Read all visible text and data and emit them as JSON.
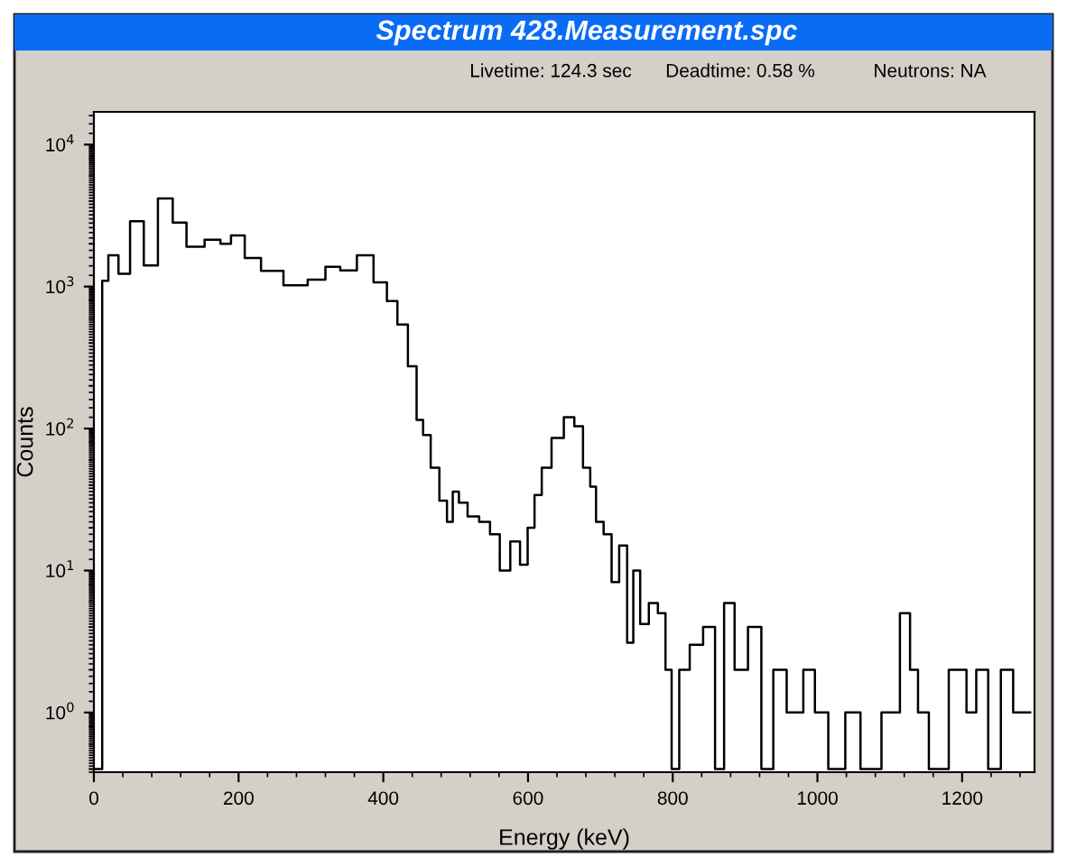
{
  "chart_data": {
    "type": "step",
    "title": "Spectrum 428.Measurement.spc",
    "annotations": [
      "Livetime: 124.3 sec",
      "Deadtime: 0.58 %",
      "Neutrons: NA"
    ],
    "xlabel": "Energy (keV)",
    "ylabel": "Counts",
    "x": [
      0,
      11,
      12,
      28,
      40,
      60,
      78,
      99,
      119,
      137,
      169,
      181,
      198,
      219,
      243,
      281,
      310,
      330,
      351,
      376,
      397,
      413,
      426,
      442,
      450,
      460,
      471,
      484,
      492,
      500,
      509,
      524,
      541,
      554,
      568,
      583,
      595,
      604,
      614,
      624,
      641,
      658,
      670,
      682,
      690,
      698,
      711,
      720,
      732,
      742,
      749,
      761,
      773,
      786,
      794,
      803,
      815,
      832,
      852,
      865,
      877,
      894,
      914,
      931,
      947,
      968,
      993,
      1000,
      1030,
      1047,
      1072,
      1105,
      1123,
      1133,
      1145,
      1163,
      1200,
      1212,
      1227,
      1245,
      1262,
      1279,
      1294
    ],
    "series": [
      {
        "color": "#000000",
        "values": [
          0.4,
          0.4,
          1100,
          1660,
          1230,
          2880,
          1410,
          4170,
          2820,
          1910,
          2140,
          2000,
          2290,
          1590,
          1290,
          1020,
          1120,
          1380,
          1300,
          1660,
          1070,
          790,
          540,
          275,
          115,
          90,
          53,
          31,
          22,
          36,
          30,
          24,
          22,
          18,
          10,
          16,
          11,
          20,
          34,
          53,
          86,
          120,
          104,
          53,
          39,
          22,
          18,
          8.3,
          15,
          3.1,
          10,
          4.2,
          5.9,
          5,
          2,
          0.4,
          2,
          3,
          4,
          0.4,
          5.9,
          2,
          4,
          0.4,
          2,
          1,
          2,
          1,
          0.4,
          1,
          0.4,
          1,
          5,
          2,
          1,
          0.4,
          2,
          1,
          2,
          0.4,
          2,
          1,
          1
        ]
      }
    ],
    "xlim": [
      0,
      1300
    ],
    "xticks": [
      0,
      200,
      400,
      600,
      800,
      1000,
      1200
    ],
    "log": "y",
    "ylim": [
      0.38,
      17000
    ],
    "yticks": [
      {
        "value": 1,
        "label": "10$^{0}$"
      },
      {
        "value": 10,
        "label": "10$^{1}$"
      },
      {
        "value": 100,
        "label": "10$^{2}$"
      },
      {
        "value": 1000,
        "label": "10$^{3}$"
      },
      {
        "value": 10000,
        "label": "10$^{4}$"
      }
    ],
    "grid": false,
    "legend": false
  }
}
